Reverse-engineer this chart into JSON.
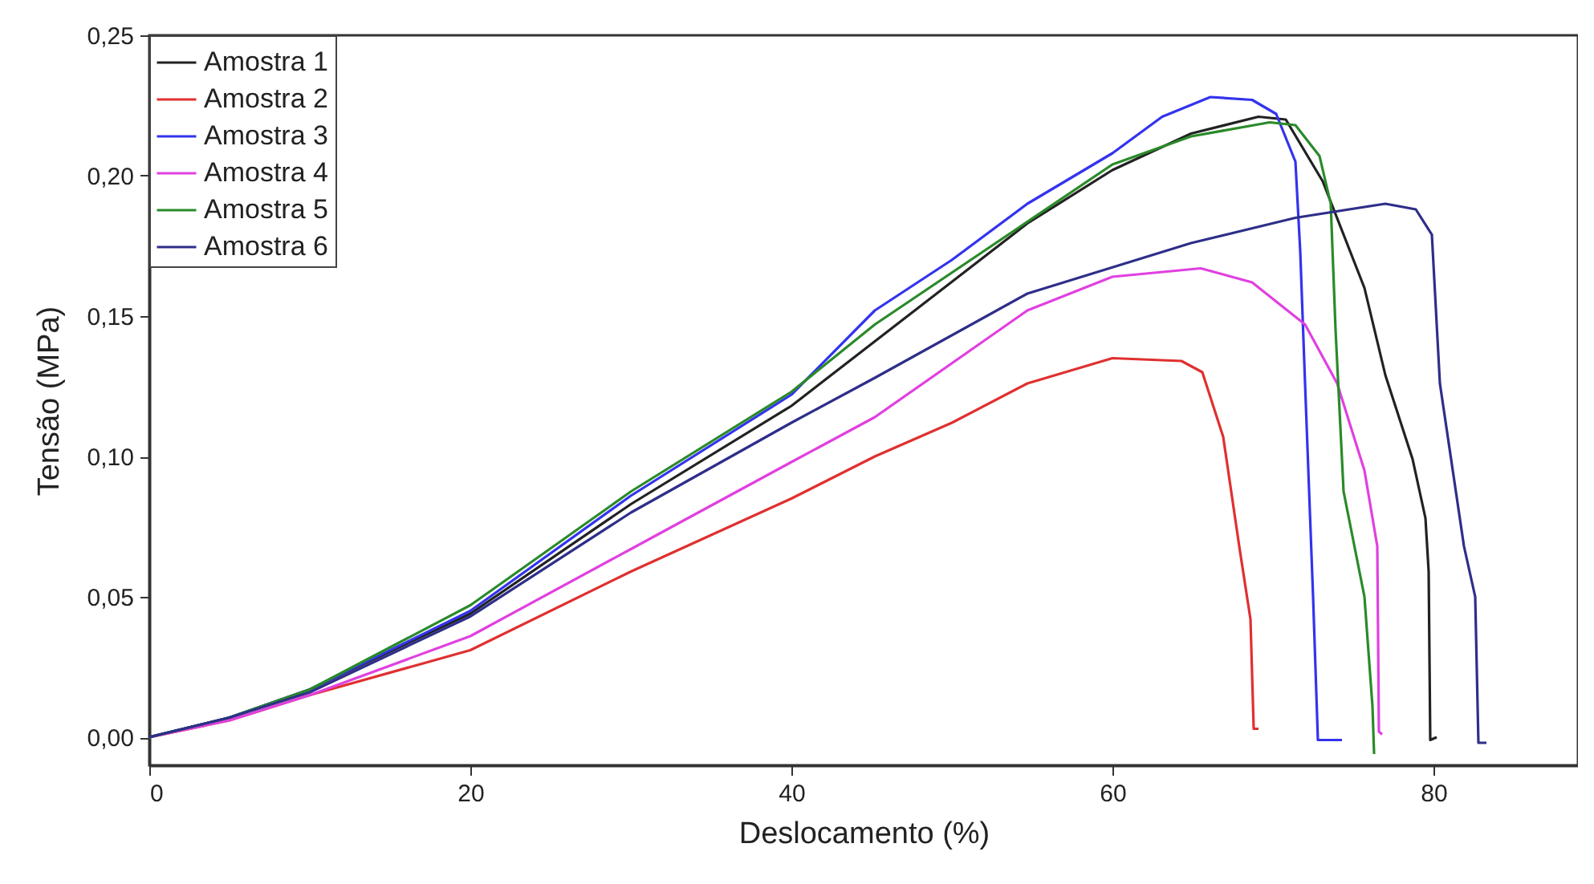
{
  "chart_data": {
    "type": "line",
    "xlabel": "Deslocamento (%)",
    "ylabel": "Tensão (MPa)",
    "xlim": [
      0,
      89
    ],
    "ylim": [
      -0.01,
      0.25
    ],
    "xticks": [
      0,
      20,
      40,
      60,
      80
    ],
    "yticks": [
      {
        "value": 0,
        "label": "0,00"
      },
      {
        "value": 0.05,
        "label": "0,05"
      },
      {
        "value": 0.1,
        "label": "0,10"
      },
      {
        "value": 0.15,
        "label": "0,15"
      },
      {
        "value": 0.2,
        "label": "0,20"
      },
      {
        "value": 0.25,
        "label": "0,25"
      }
    ],
    "grid": false,
    "legend": "top left",
    "marker": "none",
    "line_style": "solid",
    "series": [
      {
        "name": "Amostra 1",
        "color": "#222222",
        "x": [
          0,
          5,
          10,
          20,
          30,
          40,
          45.2,
          54.7,
          60,
          64.9,
          69.1,
          70.8,
          73.1,
          75.7,
          77.0,
          78.7,
          79.5,
          79.7,
          79.8,
          80.2
        ],
        "values": [
          0,
          0.007,
          0.017,
          0.044,
          0.083,
          0.118,
          0.141,
          0.183,
          0.202,
          0.215,
          0.221,
          0.22,
          0.198,
          0.16,
          0.129,
          0.099,
          0.078,
          0.059,
          -0.001,
          0.0
        ]
      },
      {
        "name": "Amostra 2",
        "color": "#e03030",
        "x": [
          0,
          5,
          10,
          20,
          30,
          40,
          45.2,
          50,
          54.7,
          60,
          64.3,
          65.6,
          66.9,
          67.9,
          68.6,
          68.8,
          69.1
        ],
        "values": [
          0,
          0.006,
          0.015,
          0.031,
          0.059,
          0.085,
          0.1,
          0.112,
          0.126,
          0.135,
          0.134,
          0.13,
          0.107,
          0.068,
          0.042,
          0.003,
          0.003
        ]
      },
      {
        "name": "Amostra 3",
        "color": "#3333ee",
        "x": [
          0,
          5,
          10,
          20,
          30,
          40,
          45.2,
          50,
          54.7,
          60,
          63.1,
          66.1,
          68.7,
          70.2,
          71.4,
          71.7,
          72.0,
          72.5,
          72.8,
          74.3
        ],
        "values": [
          0,
          0.007,
          0.017,
          0.045,
          0.086,
          0.122,
          0.152,
          0.17,
          0.19,
          0.208,
          0.221,
          0.228,
          0.227,
          0.222,
          0.205,
          0.173,
          0.126,
          0.05,
          -0.001,
          -0.001
        ]
      },
      {
        "name": "Amostra 4",
        "color": "#e040e0",
        "x": [
          0,
          5,
          10,
          20,
          30,
          40,
          45.2,
          54.7,
          60,
          65.5,
          68.7,
          72.0,
          74.0,
          75.7,
          76.5,
          76.6,
          76.8
        ],
        "values": [
          0,
          0.006,
          0.015,
          0.036,
          0.067,
          0.098,
          0.114,
          0.152,
          0.164,
          0.167,
          0.162,
          0.147,
          0.126,
          0.095,
          0.068,
          0.002,
          0.001
        ]
      },
      {
        "name": "Amostra 5",
        "color": "#2a8a2a",
        "x": [
          0,
          5,
          10,
          20,
          30,
          40,
          45.2,
          60,
          64.9,
          69.8,
          71.4,
          72.9,
          73.6,
          73.9,
          74.4,
          75.7,
          76.2,
          76.3
        ],
        "values": [
          0,
          0.007,
          0.017,
          0.047,
          0.0875,
          0.123,
          0.147,
          0.204,
          0.214,
          0.219,
          0.218,
          0.207,
          0.19,
          0.145,
          0.0875,
          0.05,
          0.011,
          -0.006
        ]
      },
      {
        "name": "Amostra 6",
        "color": "#2e2e8a",
        "x": [
          0,
          5,
          10,
          20,
          30,
          40,
          45.2,
          54.7,
          64.9,
          71.4,
          77.0,
          78.9,
          79.9,
          80.4,
          81.9,
          82.6,
          82.8,
          83.3
        ],
        "values": [
          0,
          0.007,
          0.016,
          0.043,
          0.08,
          0.112,
          0.128,
          0.158,
          0.176,
          0.185,
          0.19,
          0.188,
          0.179,
          0.126,
          0.068,
          0.05,
          -0.002,
          -0.002
        ]
      }
    ]
  }
}
